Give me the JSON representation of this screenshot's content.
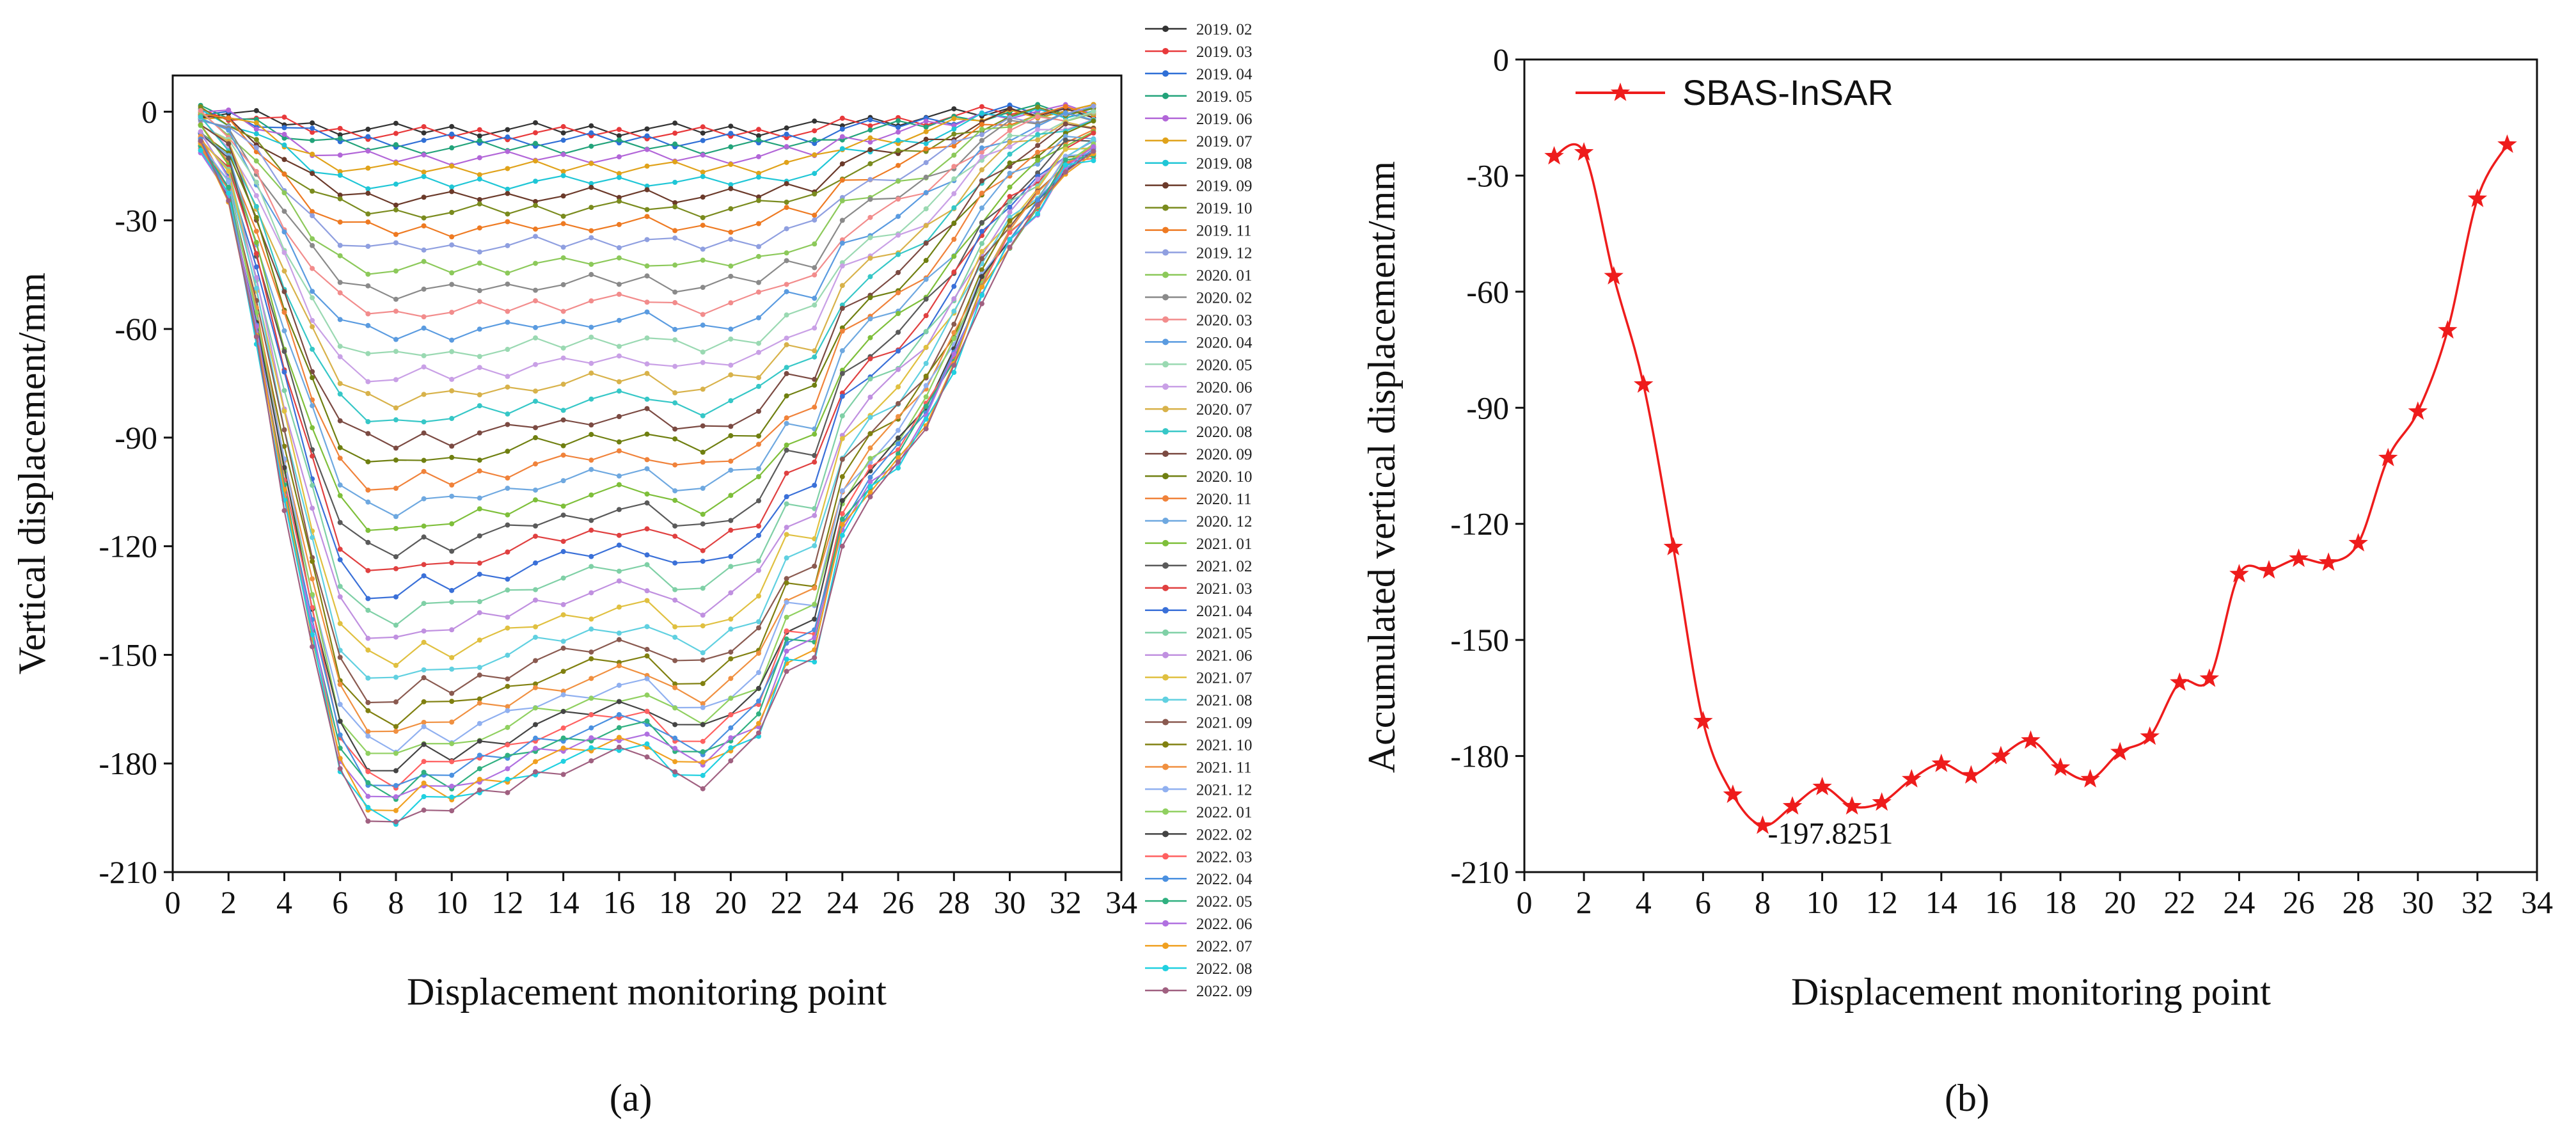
{
  "chart_data": [
    {
      "type": "line",
      "panel_label": "(a)",
      "xlabel": "Displacement monitoring point",
      "ylabel": "Vertical displacement/mm",
      "xlim": [
        0,
        34
      ],
      "ylim": [
        -210,
        10
      ],
      "x_ticks": [
        0,
        2,
        4,
        6,
        8,
        10,
        12,
        14,
        16,
        18,
        20,
        22,
        24,
        26,
        28,
        30,
        32,
        34
      ],
      "y_ticks": [
        0,
        -30,
        -60,
        -90,
        -120,
        -150,
        -180,
        -210
      ],
      "x": [
        1,
        2,
        3,
        4,
        5,
        6,
        7,
        8,
        9,
        10,
        11,
        12,
        13,
        14,
        15,
        16,
        17,
        18,
        19,
        20,
        21,
        22,
        23,
        24,
        25,
        26,
        27,
        28,
        29,
        30,
        31,
        32,
        33
      ],
      "legend_items": [
        "2019. 02",
        "2019. 03",
        "2019. 04",
        "2019. 05",
        "2019. 06",
        "2019. 07",
        "2019. 08",
        "2019. 09",
        "2019. 10",
        "2019. 11",
        "2019. 12",
        "2020. 01",
        "2020. 02",
        "2020. 03",
        "2020. 04",
        "2020. 05",
        "2020. 06",
        "2020. 07",
        "2020. 08",
        "2020. 09",
        "2020. 10",
        "2020. 11",
        "2020. 12",
        "2021. 01",
        "2021. 02",
        "2021. 03",
        "2021. 04",
        "2021. 05",
        "2021. 06",
        "2021. 07",
        "2021. 08",
        "2021. 09",
        "2021. 10",
        "2021. 11",
        "2021. 12",
        "2022. 01",
        "2022. 02",
        "2022. 03",
        "2022. 04",
        "2022. 05",
        "2022. 06",
        "2022. 07",
        "2022. 08",
        "2022. 09"
      ],
      "colors": [
        "#333333",
        "#e8393b",
        "#2f6fd6",
        "#22a37a",
        "#b266d8",
        "#e0a21a",
        "#1fc6d6",
        "#6b3a2a",
        "#7a8b1e",
        "#ee7a22",
        "#8f9fe0",
        "#8cc95a",
        "#8a8a8a",
        "#f28c8c",
        "#5a9be0",
        "#9ad9b2",
        "#c9a0e6",
        "#d8b24a",
        "#36c7c7",
        "#7b4a42",
        "#6f7f10",
        "#f0823a",
        "#6ea8e0",
        "#7ebf3a",
        "#5a5a5a",
        "#e04040",
        "#3a70d8",
        "#7fd0a6",
        "#c090e0",
        "#e0c040",
        "#60d0e0",
        "#8a5a50",
        "#808010",
        "#f09040",
        "#90b0f0",
        "#90d060",
        "#444444",
        "#ff6060",
        "#4a90e0",
        "#30b080",
        "#b070e0",
        "#f0a020",
        "#20d0e0",
        "#a06080"
      ],
      "series_profiles": {
        "shallow_shape": [
          0,
          0.1,
          0.3,
          0.55,
          0.8,
          0.92,
          0.97,
          1,
          0.99,
          1,
          0.98,
          0.99,
          0.97,
          0.99,
          0.96,
          0.97,
          0.95,
          0.99,
          1,
          0.98,
          0.97,
          0.9,
          0.88,
          0.6,
          0.5,
          0.42,
          0.32,
          0.2,
          0.06,
          -0.02,
          -0.04,
          -0.03,
          -0.03
        ],
        "deep_shape": [
          0.05,
          0.12,
          0.32,
          0.55,
          0.75,
          0.93,
          0.99,
          1.0,
          0.97,
          0.98,
          0.96,
          0.95,
          0.93,
          0.92,
          0.91,
          0.9,
          0.9,
          0.93,
          0.94,
          0.91,
          0.88,
          0.78,
          0.77,
          0.6,
          0.54,
          0.5,
          0.44,
          0.36,
          0.26,
          0.19,
          0.14,
          0.08,
          0.06
        ],
        "final_depths": [
          5,
          6,
          8,
          10,
          13,
          16,
          20,
          24,
          28,
          33,
          38,
          44,
          50,
          56,
          62,
          68,
          74,
          80,
          86,
          92,
          98,
          104,
          110,
          116,
          122,
          128,
          134,
          140,
          146,
          152,
          158,
          163,
          168,
          172,
          176,
          179,
          182,
          185,
          187,
          189,
          191,
          193,
          195,
          197
        ]
      }
    },
    {
      "type": "line",
      "panel_label": "(b)",
      "xlabel": "Displacement monitoring point",
      "ylabel": "Accumulated vertical displacement/mm",
      "xlim": [
        0,
        34
      ],
      "ylim": [
        -210,
        0
      ],
      "x_ticks": [
        0,
        2,
        4,
        6,
        8,
        10,
        12,
        14,
        16,
        18,
        20,
        22,
        24,
        26,
        28,
        30,
        32,
        34
      ],
      "y_ticks": [
        0,
        -30,
        -60,
        -90,
        -120,
        -150,
        -180,
        -210
      ],
      "series": [
        {
          "name": "SBAS-InSAR",
          "color": "#ee1c1c",
          "x": [
            1,
            2,
            3,
            4,
            5,
            6,
            7,
            8,
            9,
            10,
            11,
            12,
            13,
            14,
            15,
            16,
            17,
            18,
            19,
            20,
            21,
            22,
            23,
            24,
            25,
            26,
            27,
            28,
            29,
            30,
            31,
            32,
            33
          ],
          "values": [
            -25,
            -24,
            -56,
            -84,
            -126,
            -171,
            -190,
            -198,
            -193,
            -188,
            -193,
            -192,
            -186,
            -182,
            -185,
            -180,
            -176,
            -183,
            -186,
            -179,
            -175,
            -161,
            -160,
            -133,
            -132,
            -129,
            -130,
            -125,
            -103,
            -91,
            -70,
            -36,
            -22
          ]
        }
      ],
      "annotation": {
        "x": 8,
        "y": -198,
        "text": "-197.8251"
      },
      "legend": {
        "placement": "top-left"
      }
    }
  ]
}
